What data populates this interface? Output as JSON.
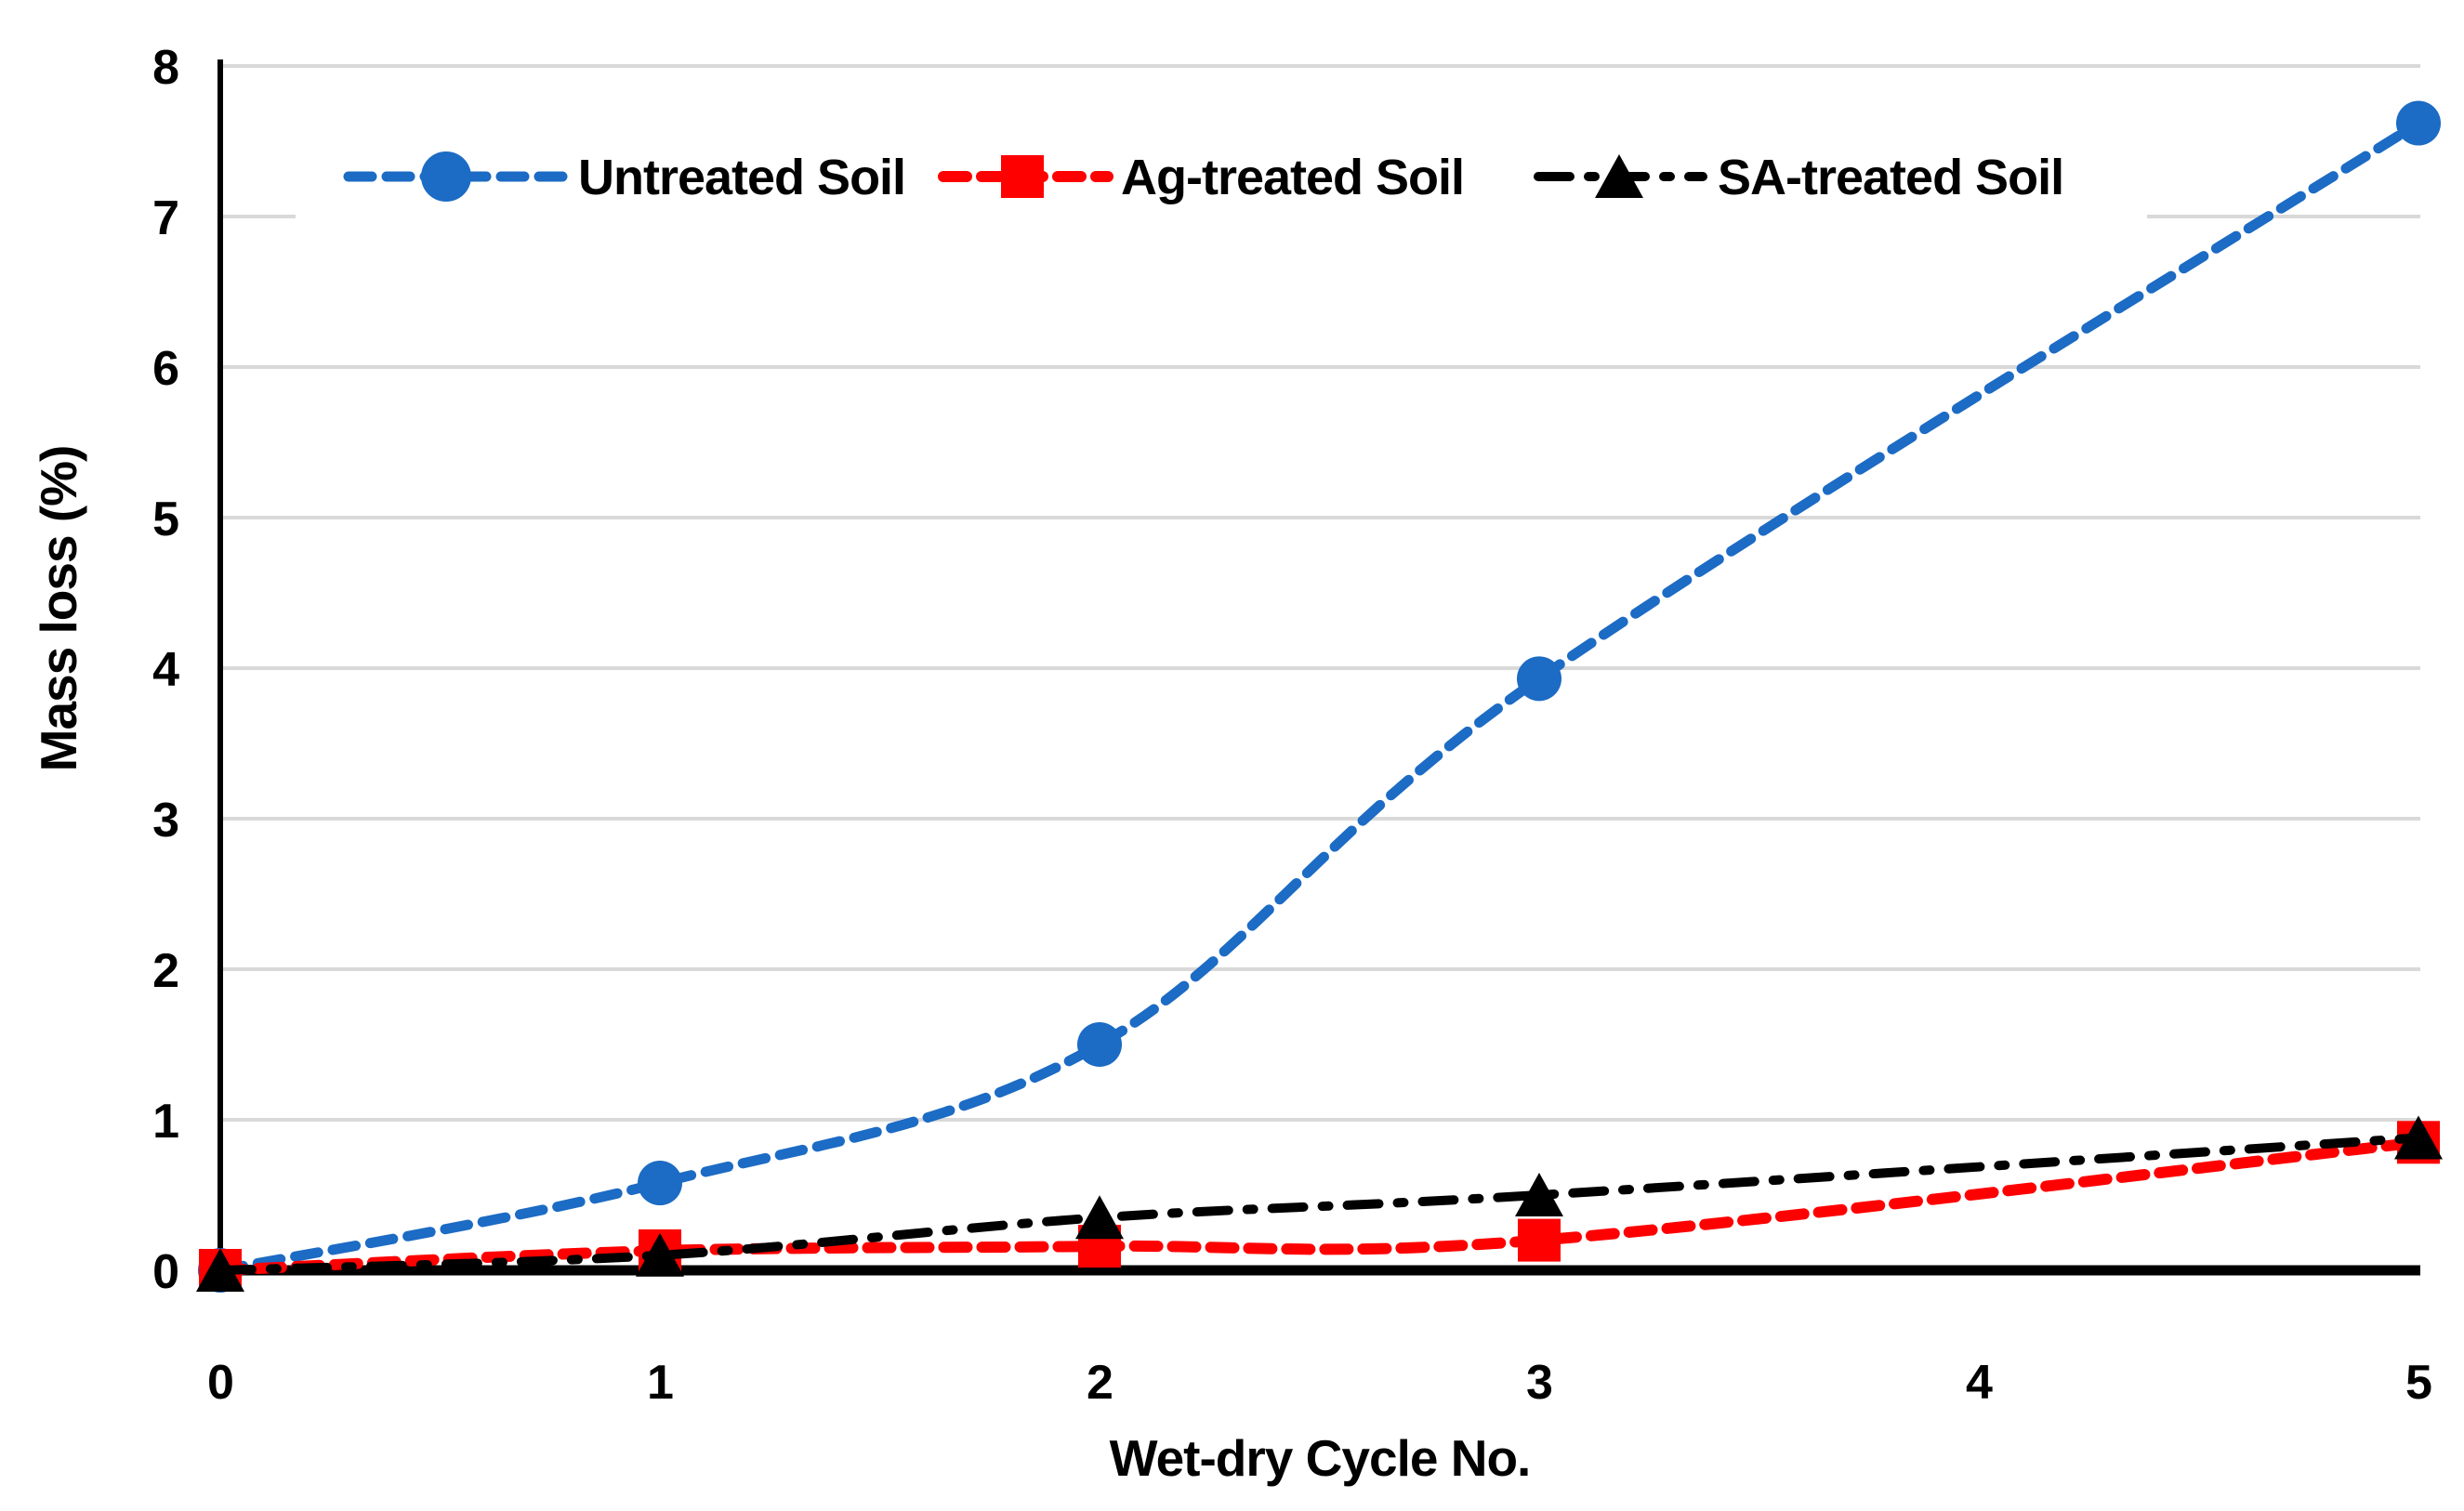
{
  "figure": {
    "background_color": "#ffffff",
    "gridline_color": "#d9d9d9",
    "axis_color": "#000000"
  },
  "chart_data": {
    "type": "line",
    "title": "",
    "xlabel": "Wet-dry Cycle No.",
    "ylabel": "Mass loss (%)",
    "x": [
      0,
      1,
      2,
      3,
      5
    ],
    "xticks": [
      "0",
      "1",
      "2",
      "3",
      "4",
      "5"
    ],
    "xtick_values": [
      0,
      1,
      2,
      3,
      4,
      5
    ],
    "yticks": [
      "0",
      "1",
      "2",
      "3",
      "4",
      "5",
      "6",
      "7",
      "8"
    ],
    "ytick_values": [
      0,
      1,
      2,
      3,
      4,
      5,
      6,
      7,
      8
    ],
    "xlim": [
      0,
      5
    ],
    "ylim": [
      0,
      8
    ],
    "grid": "horizontal",
    "legend_position": "top-inside",
    "series": [
      {
        "name": "Untreated Soil",
        "color": "#1c6bc4",
        "marker": "circle",
        "line_style": "dashed",
        "smooth": true,
        "values": [
          0,
          0.58,
          1.5,
          3.93,
          7.62
        ]
      },
      {
        "name": "Ag-treated Soil",
        "color": "#ff0000",
        "marker": "square",
        "line_style": "dashed",
        "smooth": true,
        "values": [
          0,
          0.13,
          0.16,
          0.2,
          0.85
        ]
      },
      {
        "name": "SA-treated Soil",
        "color": "#000000",
        "marker": "triangle",
        "line_style": "dash-dot",
        "smooth": true,
        "values": [
          0,
          0.1,
          0.35,
          0.5,
          0.88
        ]
      }
    ]
  }
}
